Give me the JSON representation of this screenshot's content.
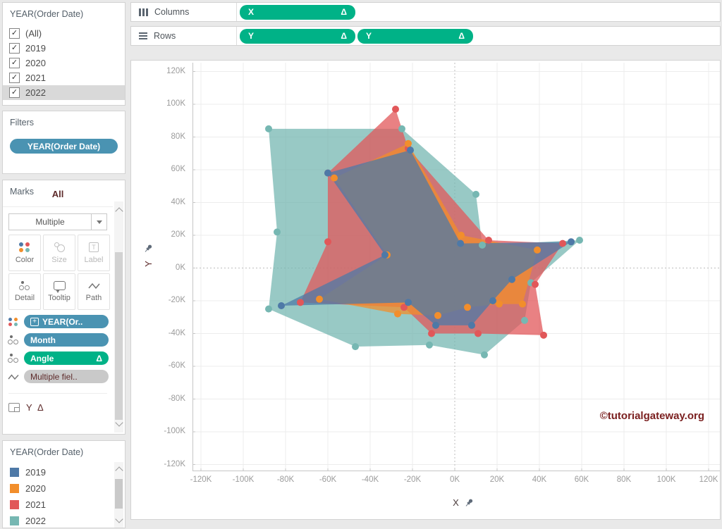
{
  "colors": {
    "pill_blue": "#4a93b2",
    "pill_green": "#00b287",
    "pill_gray": "#c9c9c9",
    "maroon_text": "#5d2a2a",
    "watermark_color": "#7b2020"
  },
  "icons": {
    "check": "✓",
    "plus": "+"
  },
  "filter_list": {
    "title": "YEAR(Order Date)",
    "items": [
      {
        "label": "(All)",
        "checked": true
      },
      {
        "label": "2019",
        "checked": true
      },
      {
        "label": "2020",
        "checked": true
      },
      {
        "label": "2021",
        "checked": true
      },
      {
        "label": "2022",
        "checked": true,
        "highlighted": true
      }
    ]
  },
  "filters_card": {
    "title": "Filters",
    "pill": "YEAR(Order Date)"
  },
  "marks_card": {
    "title": "Marks",
    "section_label": "All",
    "mark_type": "Multiple",
    "buttons": {
      "color": "Color",
      "size": "Size",
      "label": "Label",
      "detail": "Detail",
      "tooltip": "Tooltip",
      "path": "Path"
    },
    "pills": [
      {
        "label": "YEAR(Or..",
        "style": "blue",
        "icon": "color",
        "has_plus_box": true
      },
      {
        "label": "Month",
        "style": "blue",
        "icon": "detail"
      },
      {
        "label": "Angle",
        "badge": "Δ",
        "style": "green",
        "icon": "detail"
      },
      {
        "label": "Multiple fiel..",
        "style": "gray",
        "icon": "path"
      }
    ],
    "footer_label": "Y Δ"
  },
  "legend_card": {
    "title": "YEAR(Order Date)",
    "entries": [
      {
        "label": "2019",
        "color": "#4e79a7"
      },
      {
        "label": "2020",
        "color": "#f28e2b"
      },
      {
        "label": "2021",
        "color": "#e15759"
      },
      {
        "label": "2022",
        "color": "#76b7b2"
      }
    ]
  },
  "shelves": {
    "columns": {
      "label": "Columns",
      "pills": [
        {
          "label": "X",
          "badge": "Δ"
        }
      ]
    },
    "rows": {
      "label": "Rows",
      "pills": [
        {
          "label": "Y",
          "badge": "Δ"
        },
        {
          "label": "Y",
          "badge": "Δ"
        }
      ]
    }
  },
  "chart": {
    "x_axis_title": "X",
    "y_axis_title": "Y",
    "watermark": "©tutorialgateway.org"
  },
  "chart_data": {
    "type": "scatter",
    "subtype": "radar-polygon (filled polygon marks with vertex dots)",
    "xlabel": "X",
    "ylabel": "Y",
    "xlim": [
      -124000,
      125000
    ],
    "ylim": [
      -124000,
      125000
    ],
    "grid": true,
    "zero_lines": "dashed",
    "legend_position": "bottom-left panel",
    "units": "K",
    "tick_values": [
      -120,
      -100,
      -80,
      -60,
      -40,
      -20,
      0,
      20,
      40,
      60,
      80,
      100,
      120
    ],
    "tick_labels": [
      "-120K",
      "-100K",
      "-80K",
      "-60K",
      "-40K",
      "-20K",
      "0K",
      "20K",
      "40K",
      "60K",
      "80K",
      "100K",
      "120K"
    ],
    "fill_opacity": 0.75,
    "draw_order": [
      "2022",
      "2021",
      "2020",
      "2019"
    ],
    "series": [
      {
        "name": "2019",
        "color": "#4e79a7",
        "points": [
          [
            -21,
            72
          ],
          [
            2.7,
            15
          ],
          [
            55,
            16
          ],
          [
            27,
            -7
          ],
          [
            18,
            -20
          ],
          [
            8,
            -35
          ],
          [
            -9,
            -35
          ],
          [
            -22,
            -21
          ],
          [
            -82,
            -23
          ],
          [
            -33,
            8
          ],
          [
            -60,
            58
          ]
        ]
      },
      {
        "name": "2020",
        "color": "#f28e2b",
        "points": [
          [
            -22,
            76
          ],
          [
            3,
            20
          ],
          [
            39,
            11
          ],
          [
            32,
            -22
          ],
          [
            21,
            -22
          ],
          [
            6,
            -24
          ],
          [
            -8,
            -29
          ],
          [
            -27,
            -28
          ],
          [
            -64,
            -19
          ],
          [
            -32,
            8
          ],
          [
            -57,
            55
          ]
        ]
      },
      {
        "name": "2021",
        "color": "#e15759",
        "points": [
          [
            -28,
            97
          ],
          [
            -22,
            73
          ],
          [
            16,
            17
          ],
          [
            51,
            15
          ],
          [
            38,
            -10
          ],
          [
            42,
            -41
          ],
          [
            11,
            -40
          ],
          [
            -11,
            -40
          ],
          [
            -24,
            -24
          ],
          [
            -73,
            -21
          ],
          [
            -60,
            16
          ],
          [
            -60,
            58
          ]
        ]
      },
      {
        "name": "2022",
        "color": "#76b7b2",
        "points": [
          [
            -88,
            85
          ],
          [
            -25,
            85
          ],
          [
            10,
            45
          ],
          [
            13,
            14
          ],
          [
            59,
            17
          ],
          [
            36,
            -9
          ],
          [
            33,
            -32
          ],
          [
            14,
            -53
          ],
          [
            -12,
            -47
          ],
          [
            -47,
            -48
          ],
          [
            -88,
            -25
          ],
          [
            -84,
            22
          ]
        ]
      }
    ]
  }
}
